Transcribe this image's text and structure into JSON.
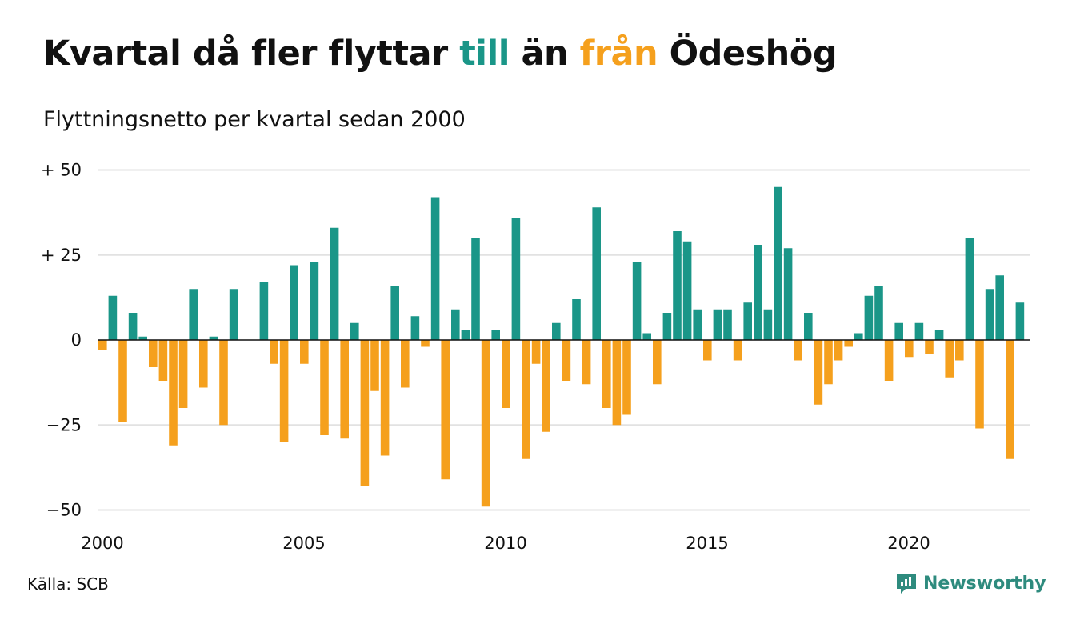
{
  "title": {
    "part1": "Kvartal då fler flyttar ",
    "highlight_to": "till",
    "part2": " än ",
    "highlight_from": "från",
    "part3": " Ödeshög"
  },
  "subtitle": "Flyttningsnetto per kvartal sedan 2000",
  "source": "Källa: SCB",
  "brand": {
    "name": "Newsworthy",
    "icon": "newsworthy-logo-icon"
  },
  "colors": {
    "positive": "#1a9688",
    "negative": "#f5a01d",
    "grid": "#e2e2e2",
    "brand": "#2e8b7e"
  },
  "chart_data": {
    "type": "bar",
    "x_tick_labels": [
      "2000",
      "2005",
      "2010",
      "2015",
      "2020"
    ],
    "y_tick_labels": [
      "+ 50",
      "+ 25",
      "0",
      "−25",
      "−50"
    ],
    "y_ticks": [
      50,
      25,
      0,
      -25,
      -50
    ],
    "ylim": [
      -50,
      50
    ],
    "xlim_years": [
      2000,
      2023.25
    ],
    "grid": true,
    "start_quarter": "2000 Q1",
    "values": [
      -3,
      13,
      -24,
      8,
      1,
      -8,
      -12,
      -31,
      -20,
      15,
      -14,
      1,
      -25,
      15,
      0,
      0,
      17,
      -7,
      -30,
      22,
      -7,
      23,
      -28,
      33,
      -29,
      5,
      -43,
      -15,
      -34,
      16,
      -14,
      7,
      -2,
      42,
      -41,
      9,
      3,
      30,
      -49,
      3,
      -20,
      36,
      -35,
      -7,
      -27,
      5,
      -12,
      12,
      -13,
      39,
      -20,
      -25,
      -22,
      23,
      2,
      -13,
      8,
      32,
      29,
      9,
      -6,
      9,
      9,
      -6,
      11,
      28,
      9,
      45,
      27,
      -6,
      8,
      -19,
      -13,
      -6,
      -2,
      2,
      13,
      16,
      -12,
      5,
      -5,
      5,
      -4,
      3,
      -11,
      -6,
      30,
      -26,
      15,
      19,
      -35,
      11
    ]
  }
}
